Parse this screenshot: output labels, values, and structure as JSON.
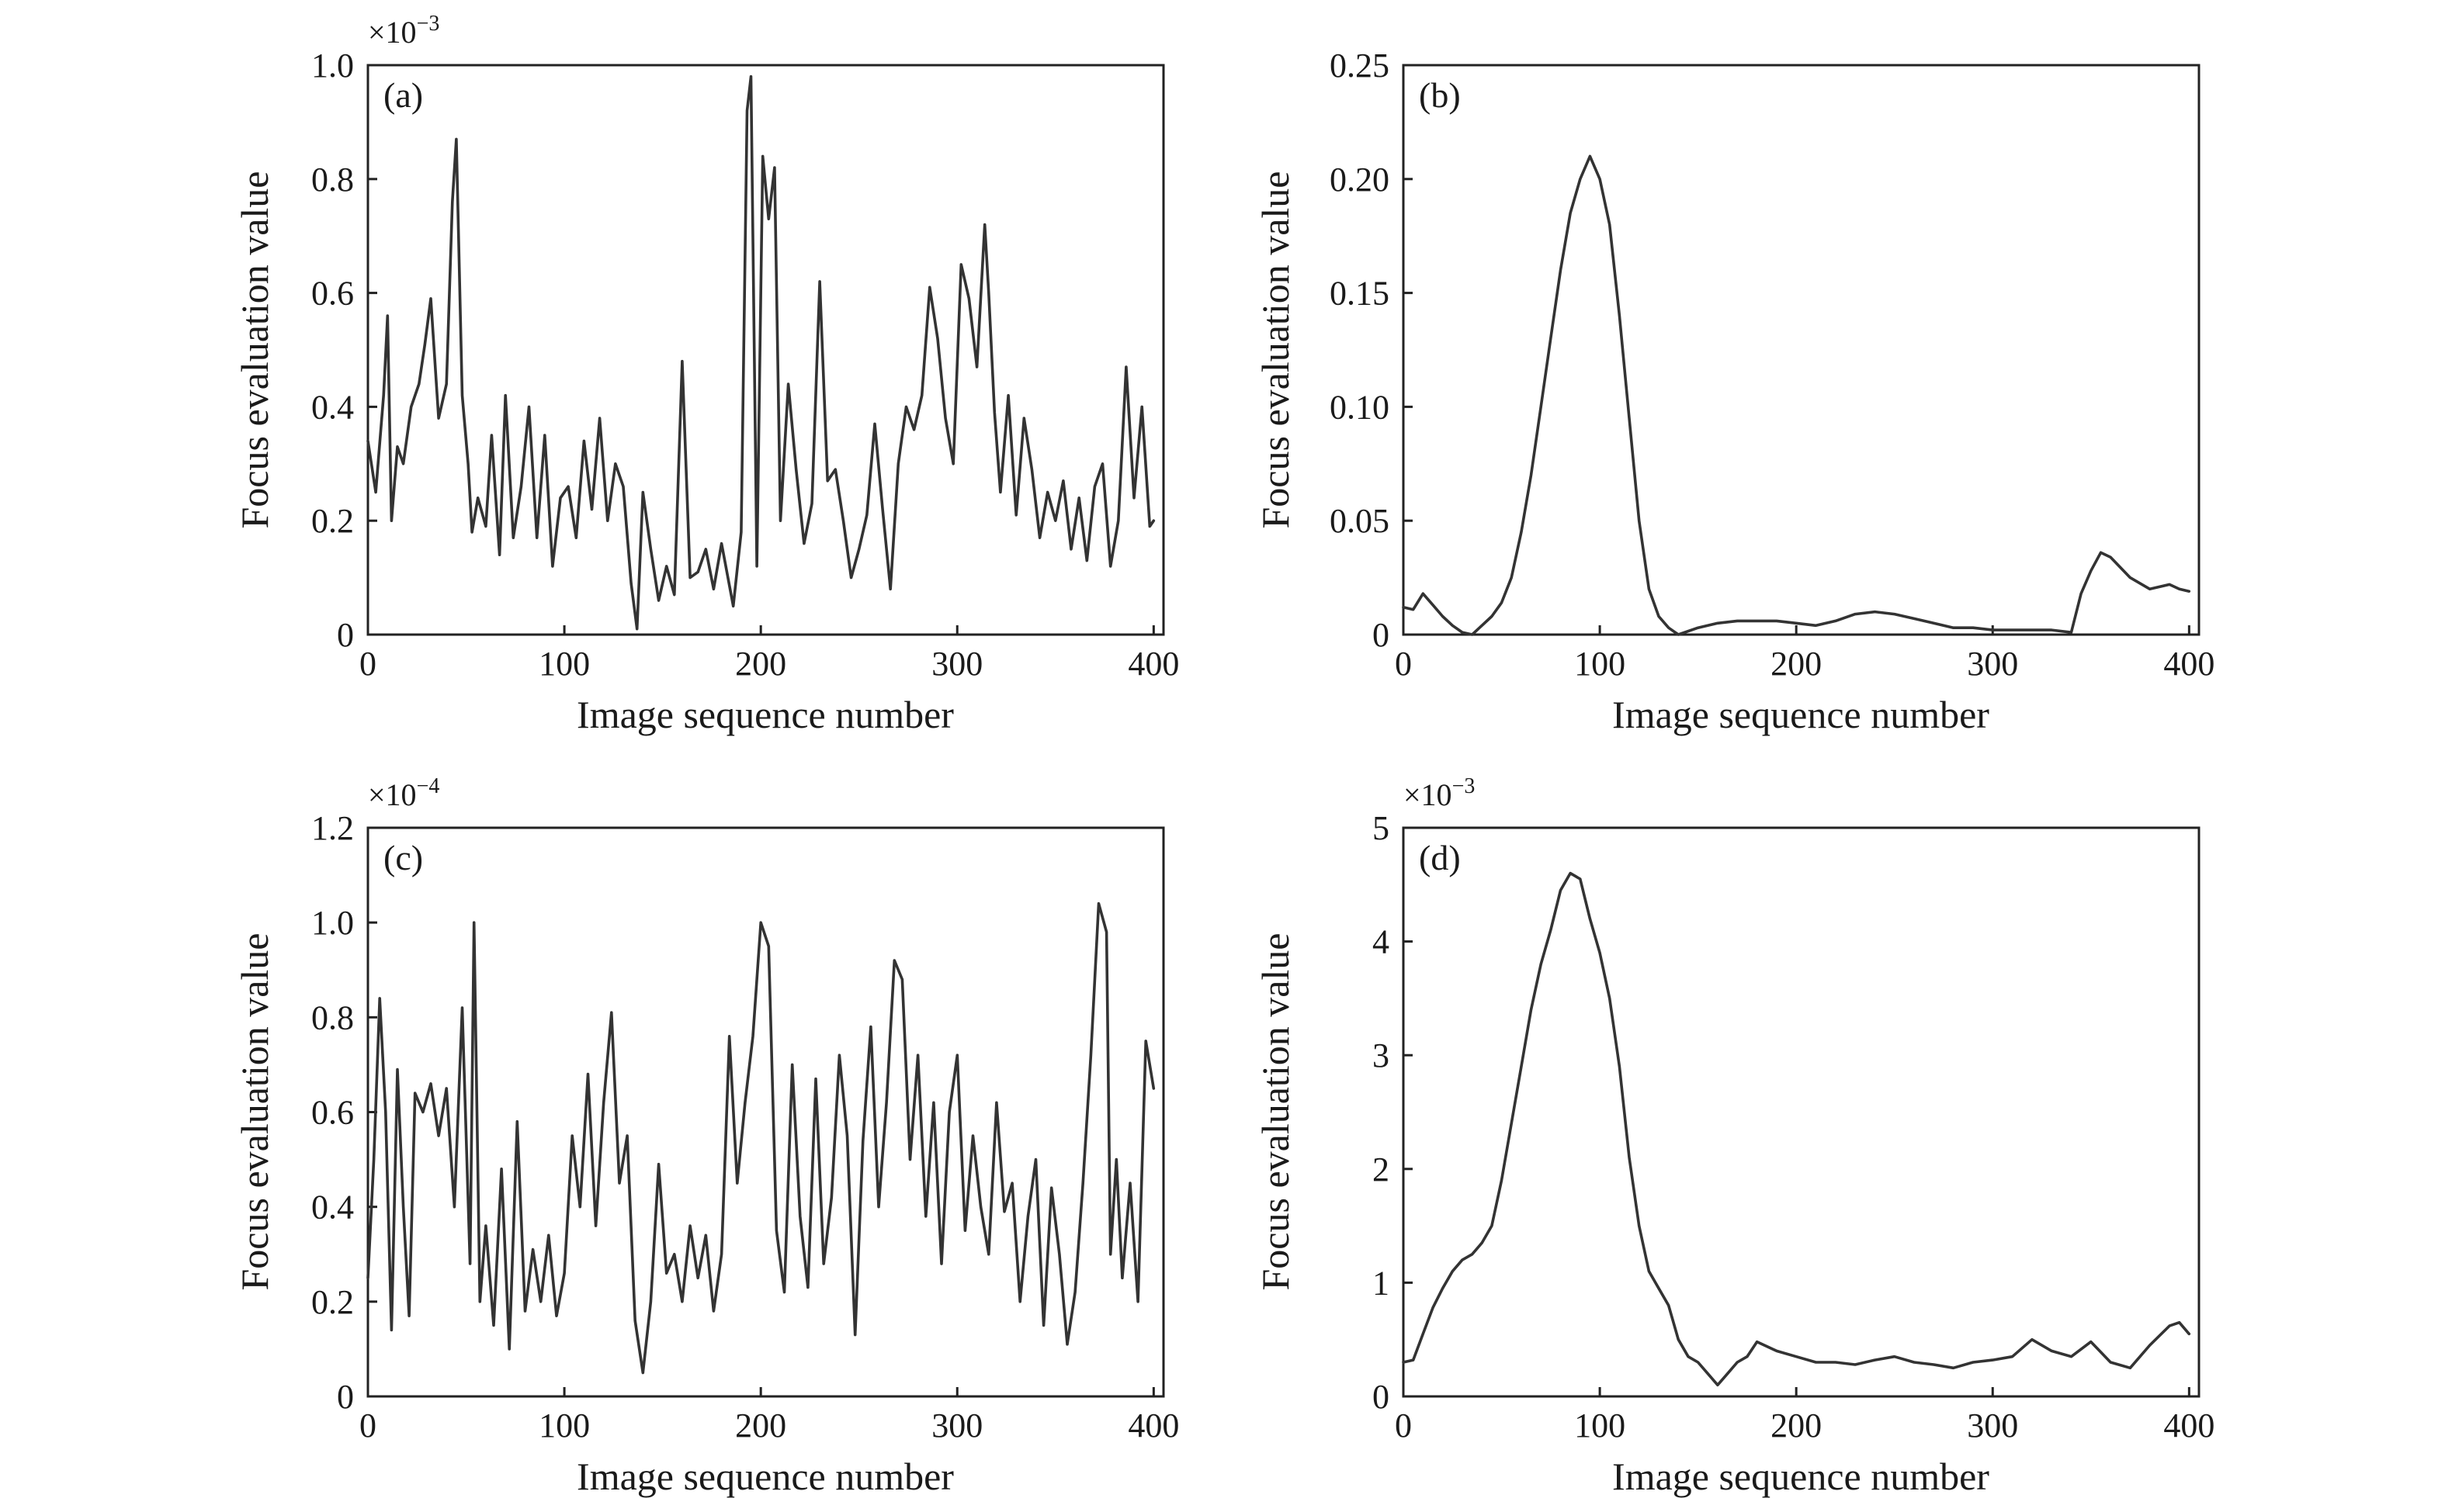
{
  "chart_data": [
    {
      "panel": "(a)",
      "type": "line",
      "xlabel": "Image sequence number",
      "ylabel": "Focus evaluation value",
      "multiplier": "×10",
      "multiplier_exp": "−3",
      "xlim": [
        0,
        405
      ],
      "ylim": [
        0,
        1.0
      ],
      "xticks": [
        0,
        100,
        200,
        300,
        400
      ],
      "yticks": [
        0,
        0.2,
        0.4,
        0.6,
        0.8,
        1.0
      ],
      "ytick_labels": [
        "0",
        "0.2",
        "0.4",
        "0.6",
        "0.8",
        "1.0"
      ],
      "series": [
        {
          "x": [
            0,
            4,
            8,
            10,
            12,
            15,
            18,
            22,
            26,
            29,
            32,
            36,
            40,
            43,
            45,
            48,
            51,
            53,
            56,
            60,
            63,
            67,
            70,
            74,
            78,
            82,
            86,
            90,
            94,
            98,
            102,
            106,
            110,
            114,
            118,
            122,
            126,
            130,
            134,
            137,
            140,
            144,
            148,
            152,
            156,
            160,
            164,
            168,
            172,
            176,
            180,
            186,
            190,
            193,
            195,
            198,
            201,
            204,
            207,
            210,
            214,
            218,
            222,
            226,
            230,
            234,
            238,
            242,
            246,
            250,
            254,
            258,
            262,
            266,
            270,
            274,
            278,
            282,
            286,
            290,
            294,
            298,
            302,
            306,
            310,
            314,
            316,
            319,
            322,
            326,
            330,
            334,
            338,
            342,
            346,
            350,
            354,
            358,
            362,
            366,
            370,
            374,
            378,
            382,
            386,
            390,
            394,
            398,
            400
          ],
          "y": [
            0.34,
            0.25,
            0.42,
            0.56,
            0.2,
            0.33,
            0.3,
            0.4,
            0.44,
            0.51,
            0.59,
            0.38,
            0.44,
            0.76,
            0.87,
            0.42,
            0.3,
            0.18,
            0.24,
            0.19,
            0.35,
            0.14,
            0.42,
            0.17,
            0.26,
            0.4,
            0.17,
            0.35,
            0.12,
            0.24,
            0.26,
            0.17,
            0.34,
            0.22,
            0.38,
            0.2,
            0.3,
            0.26,
            0.09,
            0.01,
            0.25,
            0.15,
            0.06,
            0.12,
            0.07,
            0.48,
            0.1,
            0.11,
            0.15,
            0.08,
            0.16,
            0.05,
            0.18,
            0.92,
            0.98,
            0.12,
            0.84,
            0.73,
            0.82,
            0.2,
            0.44,
            0.29,
            0.16,
            0.23,
            0.62,
            0.27,
            0.29,
            0.2,
            0.1,
            0.15,
            0.21,
            0.37,
            0.22,
            0.08,
            0.3,
            0.4,
            0.36,
            0.42,
            0.61,
            0.52,
            0.38,
            0.3,
            0.65,
            0.59,
            0.47,
            0.72,
            0.6,
            0.39,
            0.25,
            0.42,
            0.21,
            0.38,
            0.29,
            0.17,
            0.25,
            0.2,
            0.27,
            0.15,
            0.24,
            0.13,
            0.26,
            0.3,
            0.12,
            0.2,
            0.47,
            0.24,
            0.4,
            0.19,
            0.2
          ]
        }
      ]
    },
    {
      "panel": "(b)",
      "type": "line",
      "xlabel": "Image sequence number",
      "ylabel": "Focus evaluation value",
      "multiplier": "",
      "multiplier_exp": "",
      "xlim": [
        0,
        405
      ],
      "ylim": [
        0,
        0.25
      ],
      "xticks": [
        0,
        100,
        200,
        300,
        400
      ],
      "yticks": [
        0,
        0.05,
        0.1,
        0.15,
        0.2,
        0.25
      ],
      "ytick_labels": [
        "0",
        "0.05",
        "0.10",
        "0.15",
        "0.20",
        "0.25"
      ],
      "series": [
        {
          "x": [
            0,
            5,
            10,
            15,
            20,
            25,
            30,
            35,
            40,
            45,
            50,
            55,
            60,
            65,
            70,
            75,
            80,
            85,
            90,
            95,
            100,
            105,
            110,
            115,
            120,
            125,
            130,
            135,
            140,
            150,
            160,
            170,
            180,
            190,
            200,
            210,
            220,
            230,
            240,
            250,
            260,
            270,
            280,
            290,
            300,
            310,
            320,
            330,
            340,
            345,
            350,
            355,
            360,
            370,
            380,
            390,
            395,
            400
          ],
          "y": [
            0.012,
            0.011,
            0.018,
            0.013,
            0.008,
            0.004,
            0.001,
            0.0,
            0.004,
            0.008,
            0.014,
            0.025,
            0.045,
            0.07,
            0.1,
            0.13,
            0.16,
            0.185,
            0.2,
            0.21,
            0.2,
            0.18,
            0.14,
            0.095,
            0.05,
            0.02,
            0.008,
            0.003,
            0.0,
            0.003,
            0.005,
            0.006,
            0.006,
            0.006,
            0.005,
            0.004,
            0.006,
            0.009,
            0.01,
            0.009,
            0.007,
            0.005,
            0.003,
            0.003,
            0.002,
            0.002,
            0.002,
            0.002,
            0.001,
            0.018,
            0.028,
            0.036,
            0.034,
            0.025,
            0.02,
            0.022,
            0.02,
            0.019
          ]
        }
      ]
    },
    {
      "panel": "(c)",
      "type": "line",
      "xlabel": "Image sequence number",
      "ylabel": "Focus evaluation value",
      "multiplier": "×10",
      "multiplier_exp": "−4",
      "xlim": [
        0,
        405
      ],
      "ylim": [
        0,
        1.2
      ],
      "xticks": [
        0,
        100,
        200,
        300,
        400
      ],
      "yticks": [
        0,
        0.2,
        0.4,
        0.6,
        0.8,
        1.0,
        1.2
      ],
      "ytick_labels": [
        "0",
        "0.2",
        "0.4",
        "0.6",
        "0.8",
        "1.0",
        "1.2"
      ],
      "series": [
        {
          "x": [
            0,
            3,
            6,
            9,
            12,
            15,
            18,
            21,
            24,
            28,
            32,
            36,
            40,
            44,
            48,
            52,
            54,
            57,
            60,
            64,
            68,
            72,
            76,
            80,
            84,
            88,
            92,
            96,
            100,
            104,
            108,
            112,
            116,
            120,
            124,
            128,
            132,
            136,
            140,
            144,
            148,
            152,
            156,
            160,
            164,
            168,
            172,
            176,
            180,
            184,
            188,
            192,
            196,
            200,
            204,
            208,
            212,
            216,
            220,
            224,
            228,
            232,
            236,
            240,
            244,
            248,
            252,
            256,
            260,
            264,
            268,
            272,
            276,
            280,
            284,
            288,
            292,
            296,
            300,
            304,
            308,
            312,
            316,
            320,
            324,
            328,
            332,
            336,
            340,
            344,
            348,
            352,
            356,
            360,
            364,
            368,
            372,
            376,
            378,
            381,
            384,
            388,
            392,
            396,
            400
          ],
          "y": [
            0.25,
            0.5,
            0.84,
            0.6,
            0.14,
            0.69,
            0.4,
            0.17,
            0.64,
            0.6,
            0.66,
            0.55,
            0.65,
            0.4,
            0.82,
            0.28,
            1.0,
            0.2,
            0.36,
            0.15,
            0.48,
            0.1,
            0.58,
            0.18,
            0.31,
            0.2,
            0.34,
            0.17,
            0.26,
            0.55,
            0.4,
            0.68,
            0.36,
            0.62,
            0.81,
            0.45,
            0.55,
            0.16,
            0.05,
            0.2,
            0.49,
            0.26,
            0.3,
            0.2,
            0.36,
            0.25,
            0.34,
            0.18,
            0.3,
            0.76,
            0.45,
            0.62,
            0.76,
            1.0,
            0.95,
            0.35,
            0.22,
            0.7,
            0.38,
            0.23,
            0.67,
            0.28,
            0.42,
            0.72,
            0.55,
            0.13,
            0.54,
            0.78,
            0.4,
            0.62,
            0.92,
            0.88,
            0.5,
            0.72,
            0.38,
            0.62,
            0.28,
            0.6,
            0.72,
            0.35,
            0.55,
            0.4,
            0.3,
            0.62,
            0.39,
            0.45,
            0.2,
            0.38,
            0.5,
            0.15,
            0.44,
            0.3,
            0.11,
            0.22,
            0.45,
            0.72,
            1.04,
            0.98,
            0.3,
            0.5,
            0.25,
            0.45,
            0.2,
            0.75,
            0.65
          ]
        }
      ]
    },
    {
      "panel": "(d)",
      "type": "line",
      "xlabel": "Image sequence number",
      "ylabel": "Focus evaluation value",
      "multiplier": "×10",
      "multiplier_exp": "−3",
      "xlim": [
        0,
        405
      ],
      "ylim": [
        0,
        5
      ],
      "xticks": [
        0,
        100,
        200,
        300,
        400
      ],
      "yticks": [
        0,
        1,
        2,
        3,
        4,
        5
      ],
      "ytick_labels": [
        "0",
        "1",
        "2",
        "3",
        "4",
        "5"
      ],
      "series": [
        {
          "x": [
            0,
            5,
            10,
            15,
            20,
            25,
            30,
            35,
            40,
            45,
            50,
            55,
            60,
            65,
            70,
            75,
            80,
            85,
            90,
            95,
            100,
            105,
            110,
            115,
            120,
            125,
            130,
            135,
            140,
            145,
            150,
            155,
            160,
            165,
            170,
            175,
            180,
            190,
            200,
            210,
            220,
            230,
            240,
            250,
            260,
            270,
            280,
            290,
            300,
            310,
            320,
            330,
            340,
            350,
            360,
            370,
            380,
            390,
            395,
            400
          ],
          "y": [
            0.3,
            0.32,
            0.55,
            0.78,
            0.95,
            1.1,
            1.2,
            1.25,
            1.35,
            1.5,
            1.9,
            2.4,
            2.9,
            3.4,
            3.8,
            4.1,
            4.45,
            4.6,
            4.55,
            4.2,
            3.9,
            3.5,
            2.9,
            2.1,
            1.5,
            1.1,
            0.95,
            0.8,
            0.5,
            0.35,
            0.3,
            0.2,
            0.1,
            0.2,
            0.3,
            0.35,
            0.48,
            0.4,
            0.35,
            0.3,
            0.3,
            0.28,
            0.32,
            0.35,
            0.3,
            0.28,
            0.25,
            0.3,
            0.32,
            0.35,
            0.5,
            0.4,
            0.35,
            0.48,
            0.3,
            0.25,
            0.45,
            0.62,
            0.65,
            0.55
          ]
        }
      ]
    }
  ]
}
